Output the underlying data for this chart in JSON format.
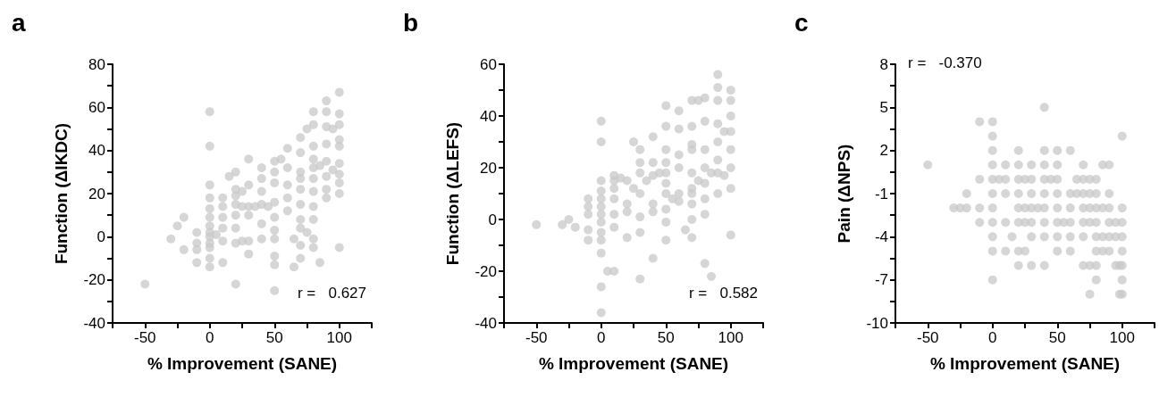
{
  "chart_data": [
    {
      "type": "scatter",
      "title": "a",
      "xlabel": "% Improvement (SANE)",
      "ylabel": "Function (ΔIKDC)",
      "annotations": [
        "r =   0.627"
      ],
      "marker": "circle",
      "grid": false,
      "xlim": [
        -75,
        125
      ],
      "xticks": [
        {
          "value": -75,
          "label": null
        },
        -50,
        {
          "value": -25,
          "label": null
        },
        0,
        {
          "value": 25,
          "label": null
        },
        50,
        {
          "value": 75,
          "label": null
        },
        100,
        {
          "value": 125,
          "label": null
        }
      ],
      "ylim": [
        -40,
        80
      ],
      "yticks": [
        -40,
        {
          "value": -30,
          "label": null
        },
        -20,
        {
          "value": -10,
          "label": null
        },
        0,
        {
          "value": 10,
          "label": null
        },
        20,
        {
          "value": 30,
          "label": null
        },
        40,
        {
          "value": 50,
          "label": null
        },
        60,
        {
          "value": 70,
          "label": null
        },
        80
      ],
      "series": [
        {
          "color": "#c8c8c8",
          "x": [
            -50,
            -30,
            -25,
            -20,
            -20,
            -10,
            -10,
            -10,
            -10,
            0,
            0,
            0,
            0,
            0,
            0,
            0,
            0,
            0,
            0,
            0,
            0,
            0,
            5,
            10,
            10,
            10,
            10,
            10,
            10,
            15,
            20,
            20,
            20,
            20,
            20,
            20,
            20,
            20,
            25,
            25,
            25,
            30,
            30,
            30,
            30,
            30,
            30,
            35,
            40,
            40,
            40,
            40,
            40,
            40,
            45,
            50,
            50,
            50,
            50,
            50,
            50,
            50,
            50,
            50,
            50,
            55,
            60,
            60,
            60,
            60,
            60,
            65,
            65,
            70,
            70,
            70,
            70,
            70,
            70,
            70,
            70,
            70,
            70,
            75,
            75,
            80,
            80,
            80,
            80,
            80,
            80,
            80,
            80,
            80,
            80,
            80,
            85,
            85,
            90,
            90,
            90,
            90,
            90,
            90,
            90,
            90,
            95,
            95,
            100,
            100,
            100,
            100,
            100,
            100,
            100,
            100,
            100,
            100
          ],
          "values": [
            -22,
            -1,
            5,
            9,
            -6,
            2,
            -3,
            -6,
            -12,
            58,
            42,
            24,
            18,
            13,
            9,
            5,
            2,
            0,
            -3,
            -5,
            -10,
            -14,
            1,
            14,
            18,
            4,
            -2,
            -12,
            9,
            28,
            30,
            22,
            15,
            10,
            4,
            -3,
            -22,
            19,
            21,
            14,
            -2,
            36,
            24,
            14,
            10,
            -2,
            -8,
            14,
            32,
            21,
            15,
            6,
            -1,
            27,
            14,
            35,
            30,
            25,
            16,
            9,
            3,
            -9,
            -13,
            -25,
            -1,
            36,
            41,
            32,
            24,
            18,
            12,
            -1,
            -14,
            46,
            39,
            30,
            27,
            22,
            15,
            8,
            4,
            -4,
            -10,
            50,
            2,
            58,
            52,
            42,
            36,
            32,
            27,
            21,
            14,
            8,
            -5,
            -1,
            -12,
            33,
            63,
            58,
            51,
            43,
            35,
            28,
            22,
            18,
            50,
            31,
            67,
            57,
            52,
            45,
            42,
            34,
            29,
            25,
            20,
            -5
          ]
        }
      ]
    },
    {
      "type": "scatter",
      "title": "b",
      "xlabel": "% Improvement (SANE)",
      "ylabel": "Function (ΔLEFS)",
      "annotations": [
        "r =   0.582"
      ],
      "marker": "circle",
      "grid": false,
      "xlim": [
        -75,
        125
      ],
      "xticks": [
        {
          "value": -75,
          "label": null
        },
        -50,
        {
          "value": -25,
          "label": null
        },
        0,
        {
          "value": 25,
          "label": null
        },
        50,
        {
          "value": 75,
          "label": null
        },
        100,
        {
          "value": 125,
          "label": null
        }
      ],
      "ylim": [
        -40,
        60
      ],
      "yticks": [
        -40,
        {
          "value": -30,
          "label": null
        },
        -20,
        {
          "value": -10,
          "label": null
        },
        0,
        {
          "value": 10,
          "label": null
        },
        20,
        {
          "value": 30,
          "label": null
        },
        40,
        {
          "value": 50,
          "label": null
        },
        60
      ],
      "series": [
        {
          "color": "#c8c8c8",
          "x": [
            -50,
            -30,
            -25,
            -20,
            -10,
            -10,
            -10,
            -10,
            -10,
            0,
            0,
            0,
            0,
            0,
            0,
            0,
            0,
            0,
            0,
            0,
            0,
            0,
            5,
            10,
            10,
            10,
            10,
            10,
            10,
            10,
            15,
            20,
            20,
            20,
            20,
            25,
            25,
            30,
            30,
            30,
            30,
            30,
            30,
            30,
            35,
            40,
            40,
            40,
            40,
            40,
            40,
            45,
            50,
            50,
            50,
            50,
            50,
            50,
            50,
            50,
            50,
            50,
            55,
            60,
            60,
            60,
            60,
            60,
            60,
            65,
            70,
            70,
            70,
            70,
            70,
            70,
            70,
            70,
            70,
            70,
            75,
            75,
            80,
            80,
            80,
            80,
            80,
            80,
            80,
            80,
            85,
            85,
            90,
            90,
            90,
            90,
            90,
            90,
            90,
            90,
            95,
            95,
            100,
            100,
            100,
            100,
            100,
            100,
            100,
            100
          ],
          "values": [
            -2,
            -2,
            0,
            -3,
            8,
            5,
            2,
            -4,
            -8,
            38,
            30,
            15,
            11,
            8,
            5,
            2,
            -1,
            -5,
            -8,
            -13,
            -26,
            -36,
            -20,
            -20,
            17,
            12,
            8,
            2,
            -3,
            15,
            16,
            15,
            6,
            3,
            -7,
            30,
            12,
            27,
            22,
            18,
            10,
            1,
            -5,
            -23,
            15,
            32,
            22,
            17,
            6,
            3,
            -15,
            18,
            44,
            36,
            27,
            22,
            18,
            14,
            10,
            4,
            -1,
            -8,
            8,
            42,
            35,
            25,
            20,
            10,
            7,
            -4,
            46,
            36,
            29,
            27,
            18,
            12,
            6,
            0,
            -7,
            10,
            46,
            15,
            47,
            38,
            27,
            20,
            14,
            8,
            2,
            -17,
            -22,
            18,
            56,
            51,
            46,
            37,
            30,
            23,
            10,
            18,
            34,
            17,
            50,
            46,
            40,
            34,
            27,
            20,
            12,
            -6
          ]
        }
      ]
    },
    {
      "type": "scatter",
      "title": "c",
      "xlabel": "% Improvement (SANE)",
      "ylabel": "Pain (ΔNPS)",
      "annotations": [
        "r =   -0.370"
      ],
      "marker": "circle",
      "grid": false,
      "xlim": [
        -75,
        125
      ],
      "xticks": [
        {
          "value": -75,
          "label": null
        },
        -50,
        {
          "value": -25,
          "label": null
        },
        0,
        {
          "value": 25,
          "label": null
        },
        50,
        {
          "value": 75,
          "label": null
        },
        100,
        {
          "value": 125,
          "label": null
        }
      ],
      "ylim": [
        -10,
        8
      ],
      "yticks": [
        -10,
        {
          "value": -8.5,
          "label": null
        },
        -7,
        {
          "value": -5.5,
          "label": null
        },
        -4,
        {
          "value": -2.5,
          "label": null
        },
        -1,
        {
          "value": 0.5,
          "label": null
        },
        2,
        {
          "value": 3.5,
          "label": null
        },
        5,
        {
          "value": 6.5,
          "label": null
        },
        8
      ],
      "series": [
        {
          "color": "#c8c8c8",
          "x": [
            -50,
            -30,
            -25,
            -20,
            -20,
            -10,
            -10,
            -10,
            -10,
            0,
            0,
            0,
            0,
            0,
            0,
            0,
            0,
            0,
            0,
            0,
            5,
            10,
            10,
            10,
            10,
            10,
            15,
            20,
            20,
            20,
            20,
            20,
            20,
            20,
            20,
            25,
            25,
            25,
            25,
            30,
            30,
            30,
            30,
            30,
            30,
            30,
            35,
            40,
            40,
            40,
            40,
            40,
            40,
            40,
            40,
            40,
            45,
            50,
            50,
            50,
            50,
            50,
            50,
            50,
            50,
            55,
            60,
            60,
            60,
            60,
            60,
            60,
            65,
            65,
            70,
            70,
            70,
            70,
            70,
            70,
            70,
            75,
            75,
            75,
            75,
            75,
            75,
            80,
            80,
            80,
            80,
            80,
            80,
            80,
            80,
            85,
            85,
            85,
            85,
            90,
            90,
            90,
            90,
            90,
            90,
            95,
            95,
            95,
            100,
            100,
            100,
            100,
            100,
            100,
            100,
            100,
            98,
            98
          ],
          "values": [
            1,
            -2,
            -2,
            -2,
            -1,
            4,
            0,
            -2,
            -3,
            4,
            3,
            2,
            1,
            0,
            -1,
            -2,
            -3,
            -4,
            -5,
            -7,
            0,
            1,
            0,
            -1,
            -3,
            -5,
            -4,
            2,
            1,
            0,
            -1,
            -2,
            -3,
            -5,
            -6,
            0,
            -2,
            -3,
            -5,
            1,
            0,
            -1,
            -2,
            -3,
            -4,
            -6,
            -2,
            5,
            2,
            1,
            0,
            -1,
            -2,
            -3,
            -4,
            -6,
            0,
            2,
            1,
            0,
            -1,
            -2,
            -3,
            -4,
            -5,
            -3,
            2,
            -1,
            -2,
            -3,
            -4,
            -5,
            0,
            -1,
            1,
            0,
            -1,
            -2,
            -3,
            -4,
            -6,
            0,
            -1,
            -2,
            -3,
            -6,
            -8,
            0,
            -1,
            -2,
            -3,
            -4,
            -5,
            -6,
            -7,
            1,
            -2,
            -4,
            -5,
            1,
            -1,
            -2,
            -3,
            -4,
            -5,
            -3,
            -4,
            -6,
            3,
            -2,
            -3,
            -4,
            -5,
            -6,
            -7,
            -8,
            -8,
            -6
          ]
        }
      ]
    }
  ]
}
